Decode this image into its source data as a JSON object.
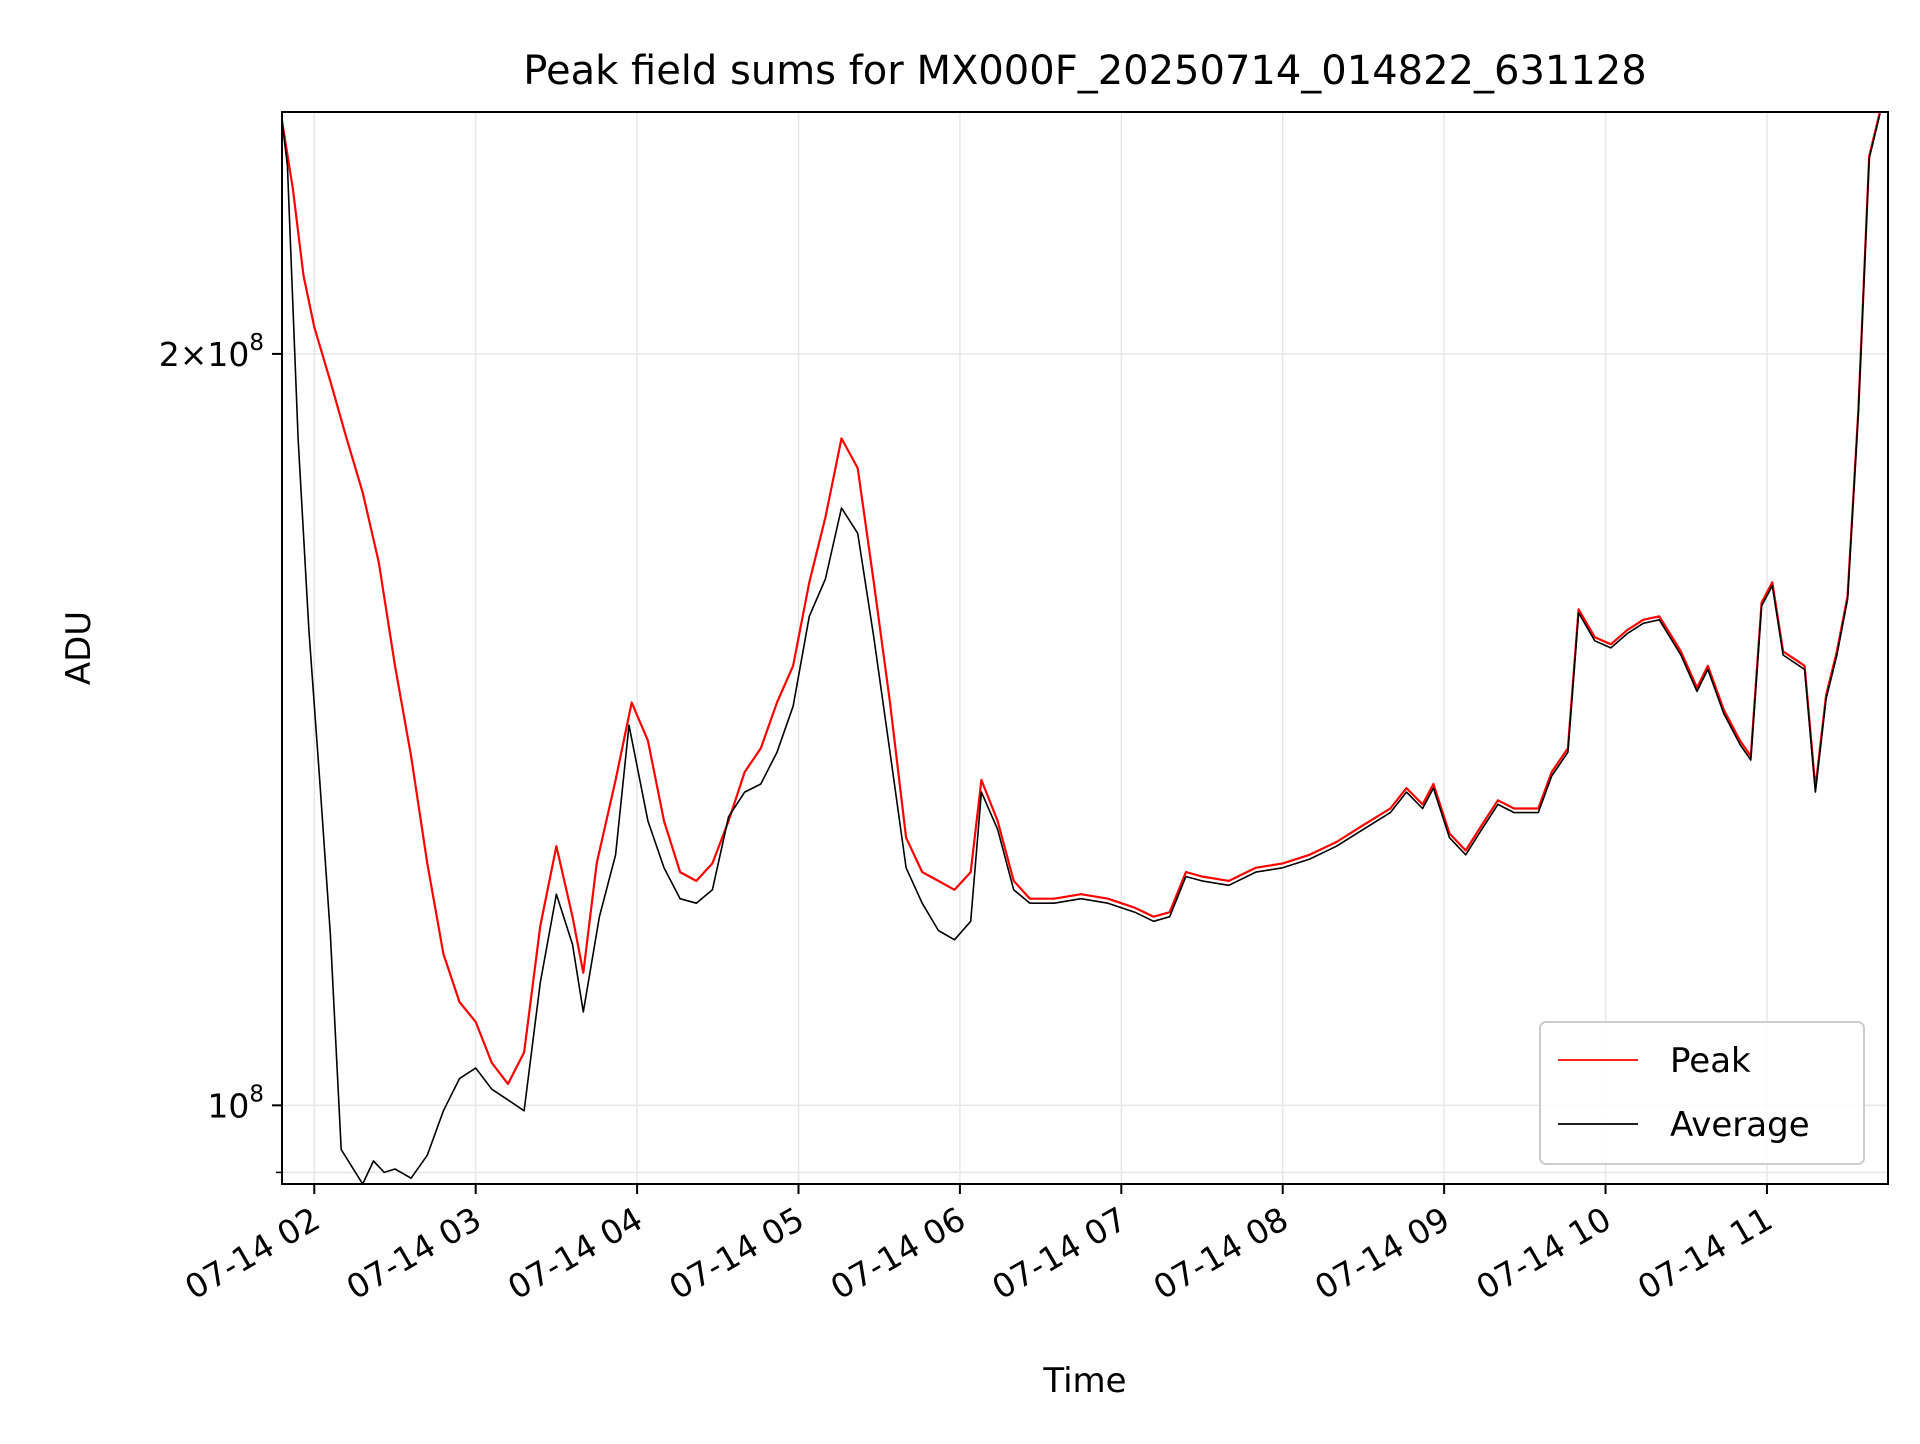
{
  "chart_data": {
    "type": "line",
    "title": "Peak field sums for MX000F_20250714_014822_631128",
    "xlabel": "Time",
    "ylabel": "ADU",
    "y_scale": "log",
    "xlim": [
      "2025-07-14 01:48",
      "2025-07-14 11:45"
    ],
    "ylim": [
      93000000,
      250000000
    ],
    "grid": true,
    "legend": {
      "placement": "bottom-right"
    },
    "x_ticks": [
      {
        "value": "2025-07-14 02:00",
        "label": "07-14 02"
      },
      {
        "value": "2025-07-14 03:00",
        "label": "07-14 03"
      },
      {
        "value": "2025-07-14 04:00",
        "label": "07-14 04"
      },
      {
        "value": "2025-07-14 05:00",
        "label": "07-14 05"
      },
      {
        "value": "2025-07-14 06:00",
        "label": "07-14 06"
      },
      {
        "value": "2025-07-14 07:00",
        "label": "07-14 07"
      },
      {
        "value": "2025-07-14 08:00",
        "label": "07-14 08"
      },
      {
        "value": "2025-07-14 09:00",
        "label": "07-14 09"
      },
      {
        "value": "2025-07-14 10:00",
        "label": "07-14 10"
      },
      {
        "value": "2025-07-14 11:00",
        "label": "07-14 11"
      }
    ],
    "y_ticks": [
      {
        "value": 100000000,
        "mantissa": "",
        "exponent": "8"
      },
      {
        "value": 200000000,
        "mantissa": "2",
        "exponent": "8"
      }
    ],
    "y_minor_ticks": [
      94000000
    ],
    "series": [
      {
        "name": "Peak",
        "color": "#ff0000",
        "values": [
          [
            "2025-07-14 01:48",
            248000000
          ],
          [
            "2025-07-14 01:52",
            233000000
          ],
          [
            "2025-07-14 01:56",
            215000000
          ],
          [
            "2025-07-14 02:00",
            205000000
          ],
          [
            "2025-07-14 02:06",
            195000000
          ],
          [
            "2025-07-14 02:12",
            185000000
          ],
          [
            "2025-07-14 02:18",
            176000000
          ],
          [
            "2025-07-14 02:24",
            165000000
          ],
          [
            "2025-07-14 02:30",
            150000000
          ],
          [
            "2025-07-14 02:36",
            138000000
          ],
          [
            "2025-07-14 02:42",
            125000000
          ],
          [
            "2025-07-14 02:48",
            115000000
          ],
          [
            "2025-07-14 02:54",
            110000000
          ],
          [
            "2025-07-14 03:00",
            108000000
          ],
          [
            "2025-07-14 03:06",
            104000000
          ],
          [
            "2025-07-14 03:12",
            102000000
          ],
          [
            "2025-07-14 03:18",
            105000000
          ],
          [
            "2025-07-14 03:24",
            118000000
          ],
          [
            "2025-07-14 03:30",
            127000000
          ],
          [
            "2025-07-14 03:36",
            119000000
          ],
          [
            "2025-07-14 03:40",
            113000000
          ],
          [
            "2025-07-14 03:45",
            125000000
          ],
          [
            "2025-07-14 03:52",
            135000000
          ],
          [
            "2025-07-14 03:58",
            145000000
          ],
          [
            "2025-07-14 04:04",
            140000000
          ],
          [
            "2025-07-14 04:10",
            130000000
          ],
          [
            "2025-07-14 04:16",
            124000000
          ],
          [
            "2025-07-14 04:22",
            123000000
          ],
          [
            "2025-07-14 04:28",
            125000000
          ],
          [
            "2025-07-14 04:34",
            130000000
          ],
          [
            "2025-07-14 04:40",
            136000000
          ],
          [
            "2025-07-14 04:46",
            139000000
          ],
          [
            "2025-07-14 04:52",
            145000000
          ],
          [
            "2025-07-14 04:58",
            150000000
          ],
          [
            "2025-07-14 05:04",
            162000000
          ],
          [
            "2025-07-14 05:10",
            172000000
          ],
          [
            "2025-07-14 05:16",
            185000000
          ],
          [
            "2025-07-14 05:22",
            180000000
          ],
          [
            "2025-07-14 05:28",
            162000000
          ],
          [
            "2025-07-14 05:34",
            145000000
          ],
          [
            "2025-07-14 05:40",
            128000000
          ],
          [
            "2025-07-14 05:46",
            124000000
          ],
          [
            "2025-07-14 05:52",
            123000000
          ],
          [
            "2025-07-14 05:58",
            122000000
          ],
          [
            "2025-07-14 06:04",
            124000000
          ],
          [
            "2025-07-14 06:08",
            135000000
          ],
          [
            "2025-07-14 06:14",
            130000000
          ],
          [
            "2025-07-14 06:20",
            123000000
          ],
          [
            "2025-07-14 06:26",
            121000000
          ],
          [
            "2025-07-14 06:35",
            121000000
          ],
          [
            "2025-07-14 06:45",
            121500000
          ],
          [
            "2025-07-14 06:55",
            121000000
          ],
          [
            "2025-07-14 07:05",
            120000000
          ],
          [
            "2025-07-14 07:12",
            119000000
          ],
          [
            "2025-07-14 07:18",
            119500000
          ],
          [
            "2025-07-14 07:24",
            124000000
          ],
          [
            "2025-07-14 07:30",
            123500000
          ],
          [
            "2025-07-14 07:40",
            123000000
          ],
          [
            "2025-07-14 07:50",
            124500000
          ],
          [
            "2025-07-14 08:00",
            125000000
          ],
          [
            "2025-07-14 08:10",
            126000000
          ],
          [
            "2025-07-14 08:20",
            127500000
          ],
          [
            "2025-07-14 08:30",
            129500000
          ],
          [
            "2025-07-14 08:40",
            131500000
          ],
          [
            "2025-07-14 08:46",
            134000000
          ],
          [
            "2025-07-14 08:52",
            132000000
          ],
          [
            "2025-07-14 08:56",
            134500000
          ],
          [
            "2025-07-14 09:02",
            128500000
          ],
          [
            "2025-07-14 09:08",
            126500000
          ],
          [
            "2025-07-14 09:14",
            129500000
          ],
          [
            "2025-07-14 09:20",
            132500000
          ],
          [
            "2025-07-14 09:26",
            131500000
          ],
          [
            "2025-07-14 09:35",
            131500000
          ],
          [
            "2025-07-14 09:40",
            136000000
          ],
          [
            "2025-07-14 09:46",
            139000000
          ],
          [
            "2025-07-14 09:50",
            158000000
          ],
          [
            "2025-07-14 09:56",
            154000000
          ],
          [
            "2025-07-14 10:02",
            153000000
          ],
          [
            "2025-07-14 10:08",
            155000000
          ],
          [
            "2025-07-14 10:14",
            156500000
          ],
          [
            "2025-07-14 10:20",
            157000000
          ],
          [
            "2025-07-14 10:28",
            152000000
          ],
          [
            "2025-07-14 10:34",
            147000000
          ],
          [
            "2025-07-14 10:38",
            150000000
          ],
          [
            "2025-07-14 10:44",
            144000000
          ],
          [
            "2025-07-14 10:50",
            140000000
          ],
          [
            "2025-07-14 10:54",
            138000000
          ],
          [
            "2025-07-14 10:58",
            159000000
          ],
          [
            "2025-07-14 11:02",
            162000000
          ],
          [
            "2025-07-14 11:06",
            152000000
          ],
          [
            "2025-07-14 11:10",
            151000000
          ],
          [
            "2025-07-14 11:14",
            150000000
          ],
          [
            "2025-07-14 11:18",
            134000000
          ],
          [
            "2025-07-14 11:22",
            146000000
          ],
          [
            "2025-07-14 11:26",
            152000000
          ],
          [
            "2025-07-14 11:30",
            160000000
          ],
          [
            "2025-07-14 11:34",
            190000000
          ],
          [
            "2025-07-14 11:38",
            240000000
          ],
          [
            "2025-07-14 11:42",
            250000000
          ]
        ]
      },
      {
        "name": "Average",
        "color": "#000000",
        "values": [
          [
            "2025-07-14 01:48",
            248000000
          ],
          [
            "2025-07-14 01:50",
            238000000
          ],
          [
            "2025-07-14 01:54",
            185000000
          ],
          [
            "2025-07-14 01:58",
            155000000
          ],
          [
            "2025-07-14 02:02",
            135000000
          ],
          [
            "2025-07-14 02:06",
            117000000
          ],
          [
            "2025-07-14 02:10",
            96000000
          ],
          [
            "2025-07-14 02:14",
            94500000
          ],
          [
            "2025-07-14 02:18",
            93000000
          ],
          [
            "2025-07-14 02:22",
            95000000
          ],
          [
            "2025-07-14 02:26",
            94000000
          ],
          [
            "2025-07-14 02:30",
            94300000
          ],
          [
            "2025-07-14 02:36",
            93500000
          ],
          [
            "2025-07-14 02:42",
            95500000
          ],
          [
            "2025-07-14 02:48",
            99500000
          ],
          [
            "2025-07-14 02:54",
            102500000
          ],
          [
            "2025-07-14 03:00",
            103500000
          ],
          [
            "2025-07-14 03:06",
            101500000
          ],
          [
            "2025-07-14 03:12",
            100500000
          ],
          [
            "2025-07-14 03:18",
            99500000
          ],
          [
            "2025-07-14 03:24",
            112000000
          ],
          [
            "2025-07-14 03:30",
            121500000
          ],
          [
            "2025-07-14 03:36",
            116000000
          ],
          [
            "2025-07-14 03:40",
            109000000
          ],
          [
            "2025-07-14 03:46",
            119000000
          ],
          [
            "2025-07-14 03:52",
            126000000
          ],
          [
            "2025-07-14 03:57",
            142000000
          ],
          [
            "2025-07-14 04:04",
            130000000
          ],
          [
            "2025-07-14 04:10",
            124500000
          ],
          [
            "2025-07-14 04:16",
            121000000
          ],
          [
            "2025-07-14 04:22",
            120500000
          ],
          [
            "2025-07-14 04:28",
            122000000
          ],
          [
            "2025-07-14 04:34",
            130500000
          ],
          [
            "2025-07-14 04:40",
            133500000
          ],
          [
            "2025-07-14 04:46",
            134500000
          ],
          [
            "2025-07-14 04:52",
            138500000
          ],
          [
            "2025-07-14 04:58",
            144500000
          ],
          [
            "2025-07-14 05:04",
            157000000
          ],
          [
            "2025-07-14 05:10",
            162500000
          ],
          [
            "2025-07-14 05:16",
            173500000
          ],
          [
            "2025-07-14 05:22",
            169500000
          ],
          [
            "2025-07-14 05:28",
            154000000
          ],
          [
            "2025-07-14 05:34",
            138500000
          ],
          [
            "2025-07-14 05:40",
            124500000
          ],
          [
            "2025-07-14 05:46",
            120500000
          ],
          [
            "2025-07-14 05:52",
            117500000
          ],
          [
            "2025-07-14 05:58",
            116500000
          ],
          [
            "2025-07-14 06:04",
            118500000
          ],
          [
            "2025-07-14 06:08",
            133500000
          ],
          [
            "2025-07-14 06:14",
            129000000
          ],
          [
            "2025-07-14 06:20",
            122000000
          ],
          [
            "2025-07-14 06:26",
            120500000
          ],
          [
            "2025-07-14 06:35",
            120500000
          ],
          [
            "2025-07-14 06:45",
            121000000
          ],
          [
            "2025-07-14 06:55",
            120500000
          ],
          [
            "2025-07-14 07:05",
            119500000
          ],
          [
            "2025-07-14 07:12",
            118500000
          ],
          [
            "2025-07-14 07:18",
            119000000
          ],
          [
            "2025-07-14 07:24",
            123500000
          ],
          [
            "2025-07-14 07:30",
            123000000
          ],
          [
            "2025-07-14 07:40",
            122500000
          ],
          [
            "2025-07-14 07:50",
            124000000
          ],
          [
            "2025-07-14 08:00",
            124500000
          ],
          [
            "2025-07-14 08:10",
            125500000
          ],
          [
            "2025-07-14 08:20",
            127000000
          ],
          [
            "2025-07-14 08:30",
            129000000
          ],
          [
            "2025-07-14 08:40",
            131000000
          ],
          [
            "2025-07-14 08:46",
            133500000
          ],
          [
            "2025-07-14 08:52",
            131500000
          ],
          [
            "2025-07-14 08:56",
            134000000
          ],
          [
            "2025-07-14 09:02",
            128000000
          ],
          [
            "2025-07-14 09:08",
            126000000
          ],
          [
            "2025-07-14 09:14",
            129000000
          ],
          [
            "2025-07-14 09:20",
            132000000
          ],
          [
            "2025-07-14 09:26",
            131000000
          ],
          [
            "2025-07-14 09:35",
            131000000
          ],
          [
            "2025-07-14 09:40",
            135500000
          ],
          [
            "2025-07-14 09:46",
            138500000
          ],
          [
            "2025-07-14 09:50",
            157500000
          ],
          [
            "2025-07-14 09:56",
            153500000
          ],
          [
            "2025-07-14 10:02",
            152500000
          ],
          [
            "2025-07-14 10:08",
            154500000
          ],
          [
            "2025-07-14 10:14",
            156000000
          ],
          [
            "2025-07-14 10:20",
            156500000
          ],
          [
            "2025-07-14 10:28",
            151500000
          ],
          [
            "2025-07-14 10:34",
            146500000
          ],
          [
            "2025-07-14 10:38",
            149500000
          ],
          [
            "2025-07-14 10:44",
            143500000
          ],
          [
            "2025-07-14 10:50",
            139500000
          ],
          [
            "2025-07-14 10:54",
            137500000
          ],
          [
            "2025-07-14 10:58",
            158500000
          ],
          [
            "2025-07-14 11:02",
            161500000
          ],
          [
            "2025-07-14 11:06",
            151500000
          ],
          [
            "2025-07-14 11:10",
            150500000
          ],
          [
            "2025-07-14 11:14",
            149500000
          ],
          [
            "2025-07-14 11:18",
            133500000
          ],
          [
            "2025-07-14 11:22",
            145500000
          ],
          [
            "2025-07-14 11:26",
            151500000
          ],
          [
            "2025-07-14 11:30",
            159500000
          ],
          [
            "2025-07-14 11:34",
            189500000
          ],
          [
            "2025-07-14 11:38",
            239500000
          ],
          [
            "2025-07-14 11:42",
            249500000
          ]
        ]
      }
    ]
  }
}
